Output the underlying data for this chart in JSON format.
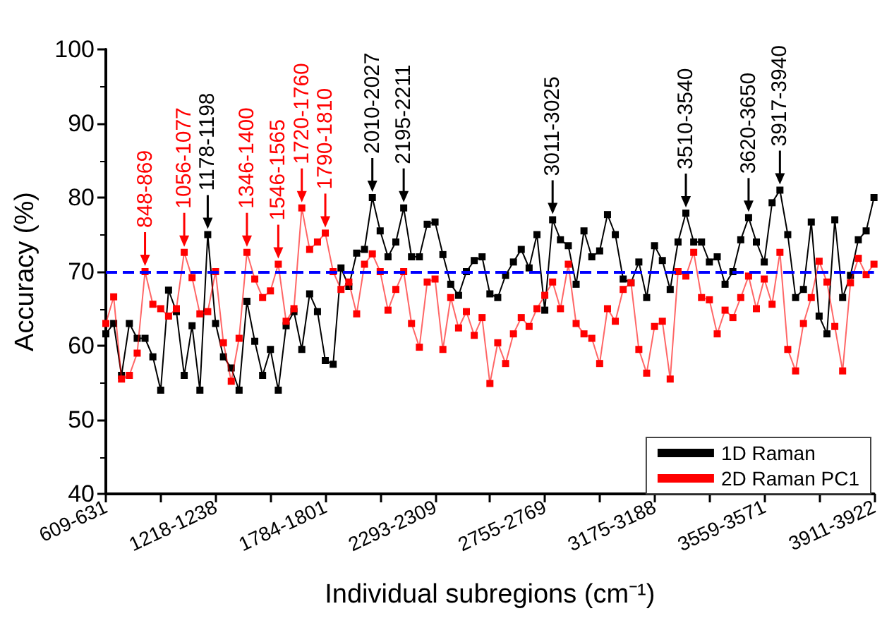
{
  "chart_data": {
    "type": "line",
    "xlabel": "Individual subregions (cm⁻¹)",
    "ylabel": "Accuracy (%)",
    "categories": [
      "609-631",
      null,
      null,
      null,
      null,
      null,
      null,
      null,
      null,
      null,
      null,
      null,
      null,
      null,
      "1218-1238",
      null,
      null,
      null,
      null,
      null,
      null,
      null,
      null,
      null,
      null,
      null,
      null,
      null,
      "1784-1801",
      null,
      null,
      null,
      null,
      null,
      null,
      null,
      null,
      null,
      null,
      null,
      null,
      null,
      "2293-2309",
      null,
      null,
      null,
      null,
      null,
      null,
      null,
      null,
      null,
      null,
      null,
      null,
      null,
      "2755-2769",
      null,
      null,
      null,
      null,
      null,
      null,
      null,
      null,
      null,
      null,
      null,
      null,
      null,
      "3175-3188",
      null,
      null,
      null,
      null,
      null,
      null,
      null,
      null,
      null,
      null,
      null,
      null,
      null,
      "3559-3571",
      null,
      null,
      null,
      null,
      null,
      null,
      null,
      null,
      null,
      null,
      null,
      null,
      null,
      "3911-3922"
    ],
    "ylim": [
      40,
      100
    ],
    "yticks": [
      40,
      50,
      60,
      70,
      80,
      90,
      100
    ],
    "grid": false,
    "legend": "bottom right",
    "marker": "square",
    "line_style": "solid",
    "series": [
      {
        "name": "1D Raman",
        "color": "#000000",
        "values": [
          61.6,
          63,
          56,
          63,
          61,
          61,
          58.5,
          54,
          67.5,
          64.6,
          56,
          62.7,
          54,
          75,
          63,
          58.5,
          57,
          54,
          66,
          60.6,
          56,
          59.5,
          54,
          62.7,
          64.6,
          59.5,
          67,
          64.6,
          58,
          57.5,
          70.5,
          68,
          72.5,
          73,
          80,
          75.5,
          72,
          74,
          78.6,
          72,
          72,
          76.4,
          76.7,
          72.3,
          68.3,
          66.8,
          70,
          71.5,
          72,
          67,
          66.5,
          69.5,
          71.3,
          73,
          70.5,
          75,
          64.8,
          77,
          74.3,
          73.5,
          68.3,
          75.5,
          72,
          72.8,
          77.7,
          75,
          69,
          68.5,
          71.3,
          66.5,
          73.5,
          71.5,
          67.6,
          74,
          77.9,
          74,
          74,
          71.3,
          72,
          68.3,
          70,
          74.3,
          77.3,
          74,
          71.3,
          79.3,
          81,
          75,
          66.5,
          67.6,
          76.7,
          64,
          61.6,
          77,
          66.5,
          69.5,
          74.3,
          75.5,
          80
        ]
      },
      {
        "name": "2D Raman PC1",
        "color": "#ff0000",
        "values": [
          63,
          66.6,
          55.5,
          56,
          59,
          70,
          65.6,
          65,
          64,
          65,
          72.6,
          69.2,
          64.3,
          64.6,
          70,
          60.4,
          55.2,
          61,
          72.6,
          69,
          66.5,
          67.4,
          71,
          63.3,
          65,
          78.6,
          73,
          74,
          75.2,
          70,
          67.6,
          68.6,
          64.3,
          71,
          72.4,
          70,
          64.8,
          67.6,
          70,
          63,
          59.8,
          68.6,
          69,
          59.5,
          66.5,
          62.4,
          64.6,
          61.4,
          63.8,
          54.9,
          60.4,
          57.6,
          61.6,
          63.8,
          62.6,
          65,
          66.8,
          68.6,
          65,
          71,
          63,
          61.6,
          61,
          57.6,
          65,
          63.3,
          67.6,
          68.5,
          59.5,
          56.3,
          62.6,
          63.3,
          55.5,
          70,
          69.4,
          72.6,
          66.5,
          66.2,
          61.6,
          64.8,
          63.8,
          66.5,
          69.4,
          65,
          69,
          65.6,
          72.6,
          59.5,
          56.6,
          63,
          66.5,
          71.4,
          68.6,
          62.6,
          56.6,
          68.5,
          71.8,
          69.6,
          71
        ]
      }
    ],
    "ref_lines": [
      {
        "axis": "y",
        "value": 70,
        "color": "#0000ff",
        "line_style": "dashed"
      }
    ],
    "annotations": [
      {
        "text": "848-869",
        "y": 70
      },
      {
        "text": "1056-1077",
        "y": 72.6
      },
      {
        "text": "1178-1198",
        "y": 75
      },
      {
        "text": "1346-1400",
        "y": 72.6
      },
      {
        "text": "1546-1565",
        "y": 71
      },
      {
        "text": "1720-1760",
        "y": 78.6
      },
      {
        "text": "1790-1810",
        "y": 75.2
      },
      {
        "text": "2010-2027",
        "y": 80
      },
      {
        "text": "2195-2211",
        "y": 78.6
      },
      {
        "text": "3011-3025",
        "y": 77
      },
      {
        "text": "3510-3540",
        "y": 77.9
      },
      {
        "text": "3620-3650",
        "y": 77.3
      },
      {
        "text": "3917-3940",
        "y": 81
      }
    ]
  }
}
